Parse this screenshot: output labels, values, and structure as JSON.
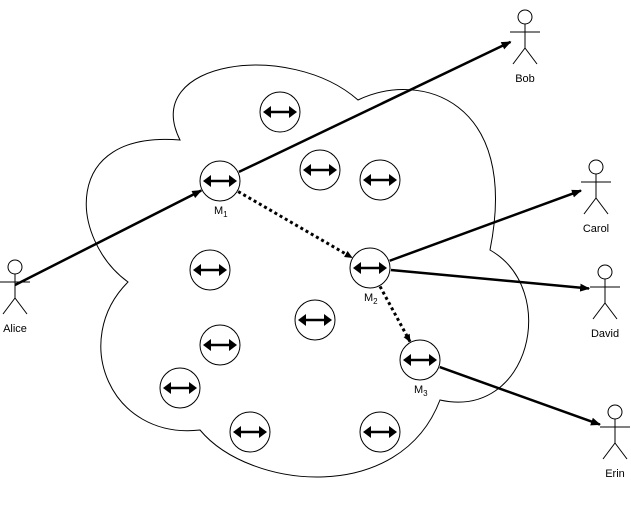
{
  "colors": {
    "stroke": "#000000",
    "background": "#ffffff"
  },
  "actors": [
    {
      "id": "alice",
      "label": "Alice"
    },
    {
      "id": "bob",
      "label": "Bob"
    },
    {
      "id": "carol",
      "label": "Carol"
    },
    {
      "id": "david",
      "label": "David"
    },
    {
      "id": "erin",
      "label": "Erin"
    }
  ],
  "mixes": [
    {
      "id": "m1",
      "label": "M",
      "sub": "1"
    },
    {
      "id": "m2",
      "label": "M",
      "sub": "2"
    },
    {
      "id": "m3",
      "label": "M",
      "sub": "3"
    }
  ],
  "node_icon": "bidirectional-arrow-icon",
  "actor_icon": "stick-figure-icon",
  "edges": [
    {
      "from": "alice",
      "to": "m1",
      "style": "solid"
    },
    {
      "from": "m1",
      "to": "bob",
      "style": "solid"
    },
    {
      "from": "m1",
      "to": "m2",
      "style": "dotted"
    },
    {
      "from": "m2",
      "to": "carol",
      "style": "solid"
    },
    {
      "from": "m2",
      "to": "david",
      "style": "solid"
    },
    {
      "from": "m2",
      "to": "m3",
      "style": "dotted"
    },
    {
      "from": "m3",
      "to": "erin",
      "style": "solid"
    }
  ]
}
